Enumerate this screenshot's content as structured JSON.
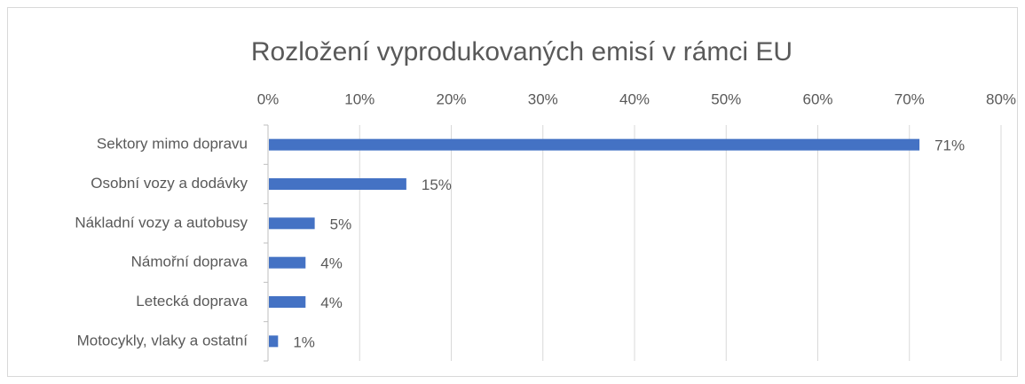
{
  "chart_data": {
    "type": "bar",
    "orientation": "horizontal",
    "title": "Rozložení vyprodukovaných emisí v rámci EU",
    "categories": [
      "Sektory mimo dopravu",
      "Osobní vozy a dodávky",
      "Nákladní vozy a autobusy",
      "Námořní doprava",
      "Letecká doprava",
      "Motocykly, vlaky a ostatní"
    ],
    "values": [
      71,
      15,
      5,
      4,
      4,
      1
    ],
    "value_labels": [
      "71%",
      "15%",
      "5%",
      "4%",
      "4%",
      "1%"
    ],
    "color": "#4472c4",
    "xlim": [
      0,
      80
    ],
    "xticks": [
      {
        "value": 0,
        "label": "0%"
      },
      {
        "value": 10,
        "label": "10%"
      },
      {
        "value": 20,
        "label": "20%"
      },
      {
        "value": 30,
        "label": "30%"
      },
      {
        "value": 40,
        "label": "40%"
      },
      {
        "value": 50,
        "label": "50%"
      },
      {
        "value": 60,
        "label": "60%"
      },
      {
        "value": 70,
        "label": "70%"
      },
      {
        "value": 80,
        "label": "80%"
      }
    ],
    "grid": true
  }
}
